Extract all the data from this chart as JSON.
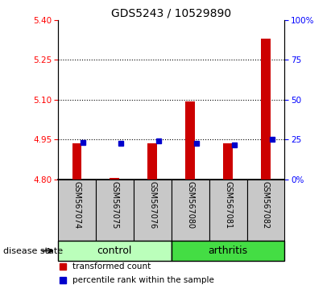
{
  "title": "GDS5243 / 10529890",
  "samples": [
    "GSM567074",
    "GSM567075",
    "GSM567076",
    "GSM567080",
    "GSM567081",
    "GSM567082"
  ],
  "red_values": [
    4.935,
    4.805,
    4.935,
    5.095,
    4.935,
    5.33
  ],
  "blue_values_left": [
    4.94,
    4.935,
    4.945,
    4.935,
    4.93,
    4.95
  ],
  "base_value": 4.8,
  "ylim": [
    4.8,
    5.4
  ],
  "yticks_left": [
    4.8,
    4.95,
    5.1,
    5.25,
    5.4
  ],
  "yticks_right": [
    0,
    25,
    50,
    75,
    100
  ],
  "right_ylim": [
    0,
    100
  ],
  "bar_color": "#cc0000",
  "dot_color": "#0000cc",
  "control_color": "#bbffbb",
  "arthritis_color": "#44dd44",
  "label_bg_color": "#c8c8c8",
  "group_label": "disease state",
  "legend_red": "transformed count",
  "legend_blue": "percentile rank within the sample",
  "bar_width": 0.25
}
